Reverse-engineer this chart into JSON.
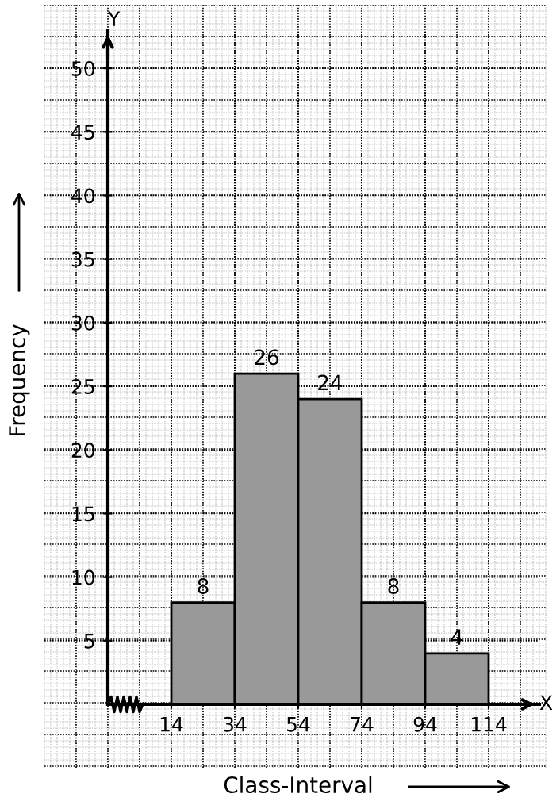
{
  "chart_data": {
    "type": "histogram",
    "xlabel": "Class-Interval",
    "ylabel": "Frequency",
    "bins": [
      14,
      34,
      54,
      74,
      94,
      114
    ],
    "values": [
      8,
      26,
      24,
      8,
      4
    ],
    "color": "#999999",
    "data_labels": true,
    "xlim": [
      -26,
      130
    ],
    "ylim": [
      0,
      53
    ],
    "xticks": [
      14,
      34,
      54,
      74,
      94,
      114
    ],
    "yticks": [
      5,
      10,
      15,
      20,
      25,
      30,
      35,
      40,
      45,
      50
    ],
    "annotations": [
      "Y",
      "X"
    ],
    "grid": true
  }
}
